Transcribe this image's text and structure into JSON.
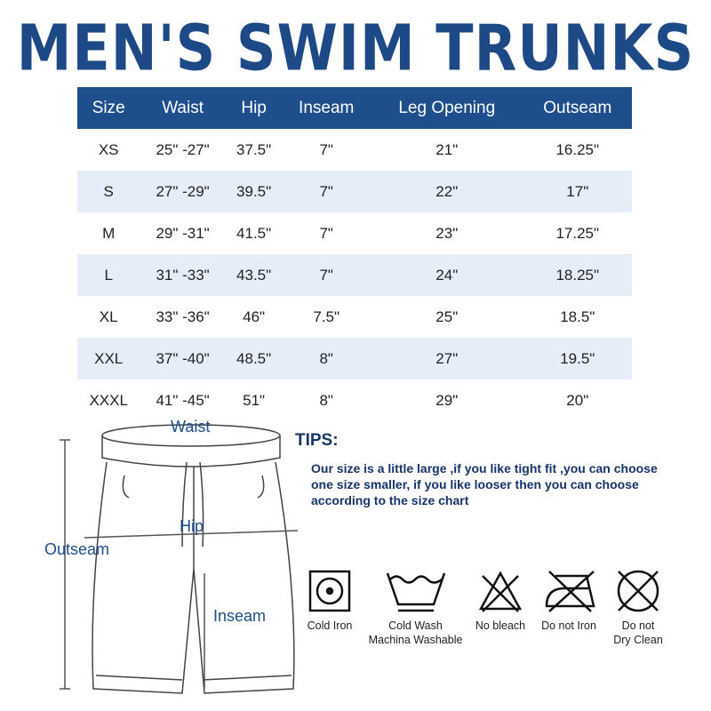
{
  "title": "MEN'S SWIM TRUNKS",
  "table": {
    "headers": [
      "Size",
      "Waist",
      "Hip",
      "Inseam",
      "Leg Opening",
      "Outseam"
    ],
    "rows": [
      [
        "XS",
        "25\" -27\"",
        "37.5\"",
        "7\"",
        "21\"",
        "16.25\""
      ],
      [
        "S",
        "27\" -29\"",
        "39.5\"",
        "7\"",
        "22\"",
        "17\""
      ],
      [
        "M",
        "29\" -31\"",
        "41.5\"",
        "7\"",
        "23\"",
        "17.25\""
      ],
      [
        "L",
        "31\" -33\"",
        "43.5\"",
        "7\"",
        "24\"",
        "18.25\""
      ],
      [
        "XL",
        "33\" -36\"",
        "46\"",
        "7.5\"",
        "25\"",
        "18.5\""
      ],
      [
        "XXL",
        "37\" -40\"",
        "48.5\"",
        "8\"",
        "27\"",
        "19.5\""
      ],
      [
        "XXXL",
        "41\" -45\"",
        "51\"",
        "8\"",
        "29\"",
        "20\""
      ]
    ]
  },
  "diagram": {
    "waist": "Waist",
    "hip": "Hip",
    "outseam": "Outseam",
    "inseam": "Inseam"
  },
  "tips": {
    "heading": "TIPS:",
    "text": "Our size is a little large ,if you like tight fit ,you can choose one size smaller, if you like looser then you can choose according to the size chart"
  },
  "care": [
    {
      "icon": "cold-iron-icon",
      "label": "Cold Iron"
    },
    {
      "icon": "cold-wash-icon",
      "label": "Cold Wash",
      "label2": "Machina Washable"
    },
    {
      "icon": "no-bleach-icon",
      "label": "No bleach"
    },
    {
      "icon": "do-not-iron-icon",
      "label": "Do not Iron"
    },
    {
      "icon": "do-not-dry-clean-icon",
      "label": "Do not",
      "label2": "Dry Clean"
    }
  ],
  "colors": {
    "brand": "#1f4e8c",
    "row_alt": "#e5edf8"
  }
}
